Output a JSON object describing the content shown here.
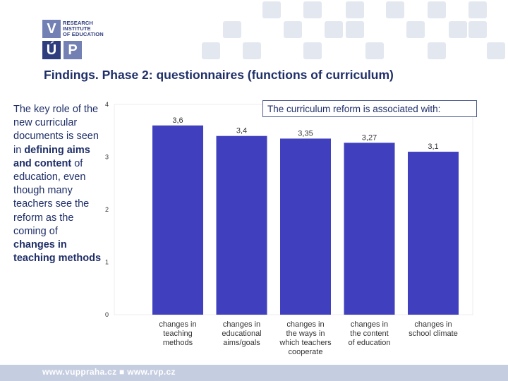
{
  "logo": {
    "letters": [
      "V",
      "Ú",
      "P"
    ],
    "text_lines": [
      "RESEARCH",
      "INSTITUTE",
      "OF EDUCATION"
    ]
  },
  "slide": {
    "title": "Findings. Phase 2: questionnaires (functions of curriculum)",
    "side_text_parts": {
      "p1": "The key role of the new curricular documents is seen in ",
      "b1": "defining aims and content",
      "p2": " of education, even though many teachers see the reform as the coming of ",
      "b2": "changes in teaching methods"
    },
    "callout": "The curriculum reform is associated with:"
  },
  "footer": {
    "text": "www.vuppraha.cz ■ www.rvp.cz"
  },
  "colors": {
    "bar": "#4040bf",
    "axis_text": "#333333",
    "accent": "#1f2f68"
  },
  "chart_data": {
    "type": "bar",
    "categories": [
      [
        "changes in",
        "teaching",
        "methods"
      ],
      [
        "changes in",
        "educational",
        "aims/goals"
      ],
      [
        "changes in",
        "the ways in",
        "which teachers",
        "cooperate"
      ],
      [
        "changes in",
        "the content",
        "of education"
      ],
      [
        "changes in",
        "school climate"
      ]
    ],
    "values": [
      3.6,
      3.4,
      3.35,
      3.27,
      3.1
    ],
    "value_labels": [
      "3,6",
      "3,4",
      "3,35",
      "3,27",
      "3,1"
    ],
    "yticks": [
      0,
      1,
      2,
      3,
      4
    ],
    "ylim": [
      0,
      4
    ],
    "title": "",
    "xlabel": "",
    "ylabel": ""
  }
}
